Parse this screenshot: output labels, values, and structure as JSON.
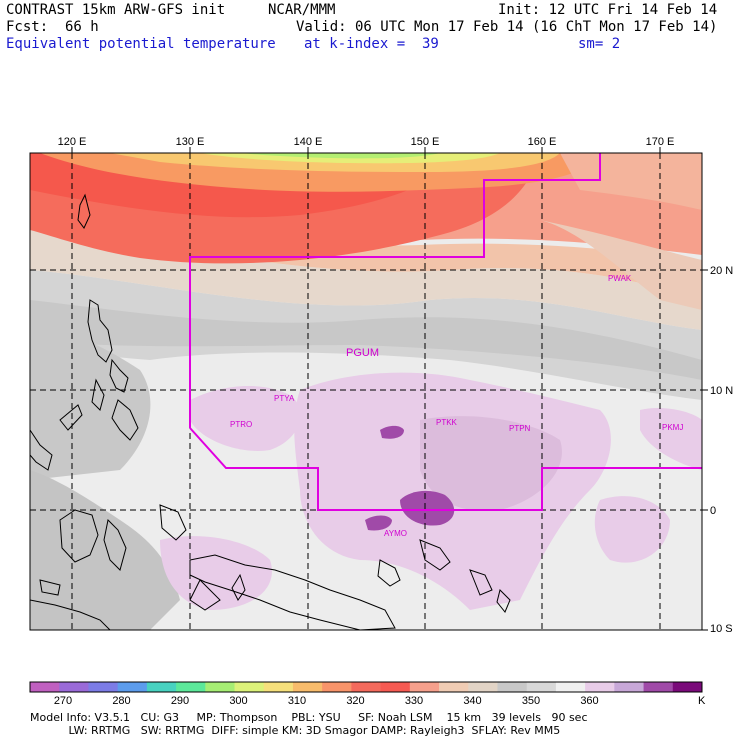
{
  "header": {
    "model": "CONTRAST 15km ARW-GFS init",
    "org": "NCAR/MMM",
    "init": "Init: 12 UTC Fri 14 Feb 14",
    "fcst_label": "Fcst:",
    "fcst_value": "66 h",
    "valid": "Valid: 06 UTC Mon 17 Feb 14 (16 ChT Mon 17 Feb 14)",
    "field": "Equivalent potential temperature",
    "level": "at k-index =  39",
    "smooth": "sm= 2"
  },
  "axes": {
    "lon_labels": [
      "120 E",
      "130 E",
      "140 E",
      "150 E",
      "160 E",
      "170 E"
    ],
    "lat_labels": [
      "20 N",
      "10 N",
      "0",
      "10 S"
    ]
  },
  "stations": [
    "PGUM",
    "PTYA",
    "PTRO",
    "PTKK",
    "PTPN",
    "PKMJ",
    "PWAK",
    "AYMO"
  ],
  "colorbar": {
    "unit": "K",
    "tick_labels": [
      "270",
      "280",
      "290",
      "300",
      "310",
      "320",
      "330",
      "340",
      "350",
      "360"
    ],
    "colors": [
      "#c060c0",
      "#9a6ad8",
      "#7c7ce6",
      "#5c9cec",
      "#48d2c0",
      "#5ce89a",
      "#a6ee74",
      "#dcf27a",
      "#f6e07c",
      "#f8bc6c",
      "#f8946a",
      "#f46a5c",
      "#f65a52",
      "#f6a08c",
      "#f0ccb4",
      "#e2d4c6",
      "#c8c8c8",
      "#d8d8d8",
      "#f0f0f0",
      "#e8cce8",
      "#c8a8d8",
      "#a04aa8",
      "#7a0a7a"
    ]
  },
  "footer": {
    "line1": "Model Info: V3.5.1   CU: G3     MP: Thompson    PBL: YSU     SF: Noah LSM    15 km   39 levels   90 sec",
    "line2": "           LW: RRTMG   SW: RRTMG  DIFF: simple KM: 3D Smagor DAMP: Rayleigh3  SFLAY: Rev MM5"
  }
}
